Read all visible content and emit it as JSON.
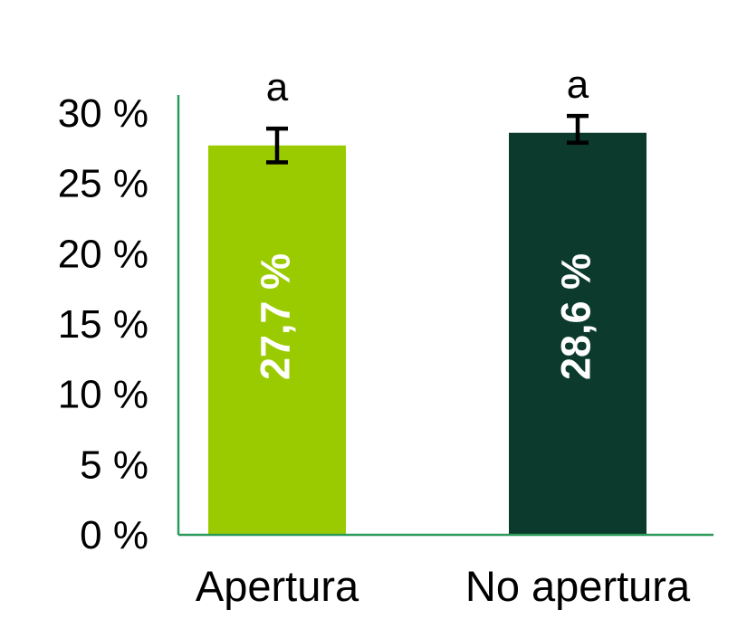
{
  "chart_data": {
    "type": "bar",
    "categories": [
      "Apertura",
      "No apertura"
    ],
    "values": [
      27.7,
      28.6
    ],
    "value_labels": [
      "27,7 %",
      "28,6 %"
    ],
    "error_bars": [
      {
        "low": 26.5,
        "high": 28.9
      },
      {
        "low": 27.9,
        "high": 29.8
      }
    ],
    "significance_letters": [
      "a",
      "a"
    ],
    "bar_colors": [
      "#9acb00",
      "#0c3a2c"
    ],
    "axis_color": "#2e9a5a",
    "ylim": [
      0,
      30
    ],
    "y_ticks": [
      {
        "value": 0,
        "label": "0 %"
      },
      {
        "value": 5,
        "label": "5 %"
      },
      {
        "value": 10,
        "label": "10 %"
      },
      {
        "value": 15,
        "label": "15 %"
      },
      {
        "value": 20,
        "label": "20 %"
      },
      {
        "value": 25,
        "label": "25 %"
      },
      {
        "value": 30,
        "label": "30 %"
      }
    ],
    "title": "",
    "xlabel": "",
    "ylabel": "",
    "grid": false,
    "legend": "none"
  }
}
